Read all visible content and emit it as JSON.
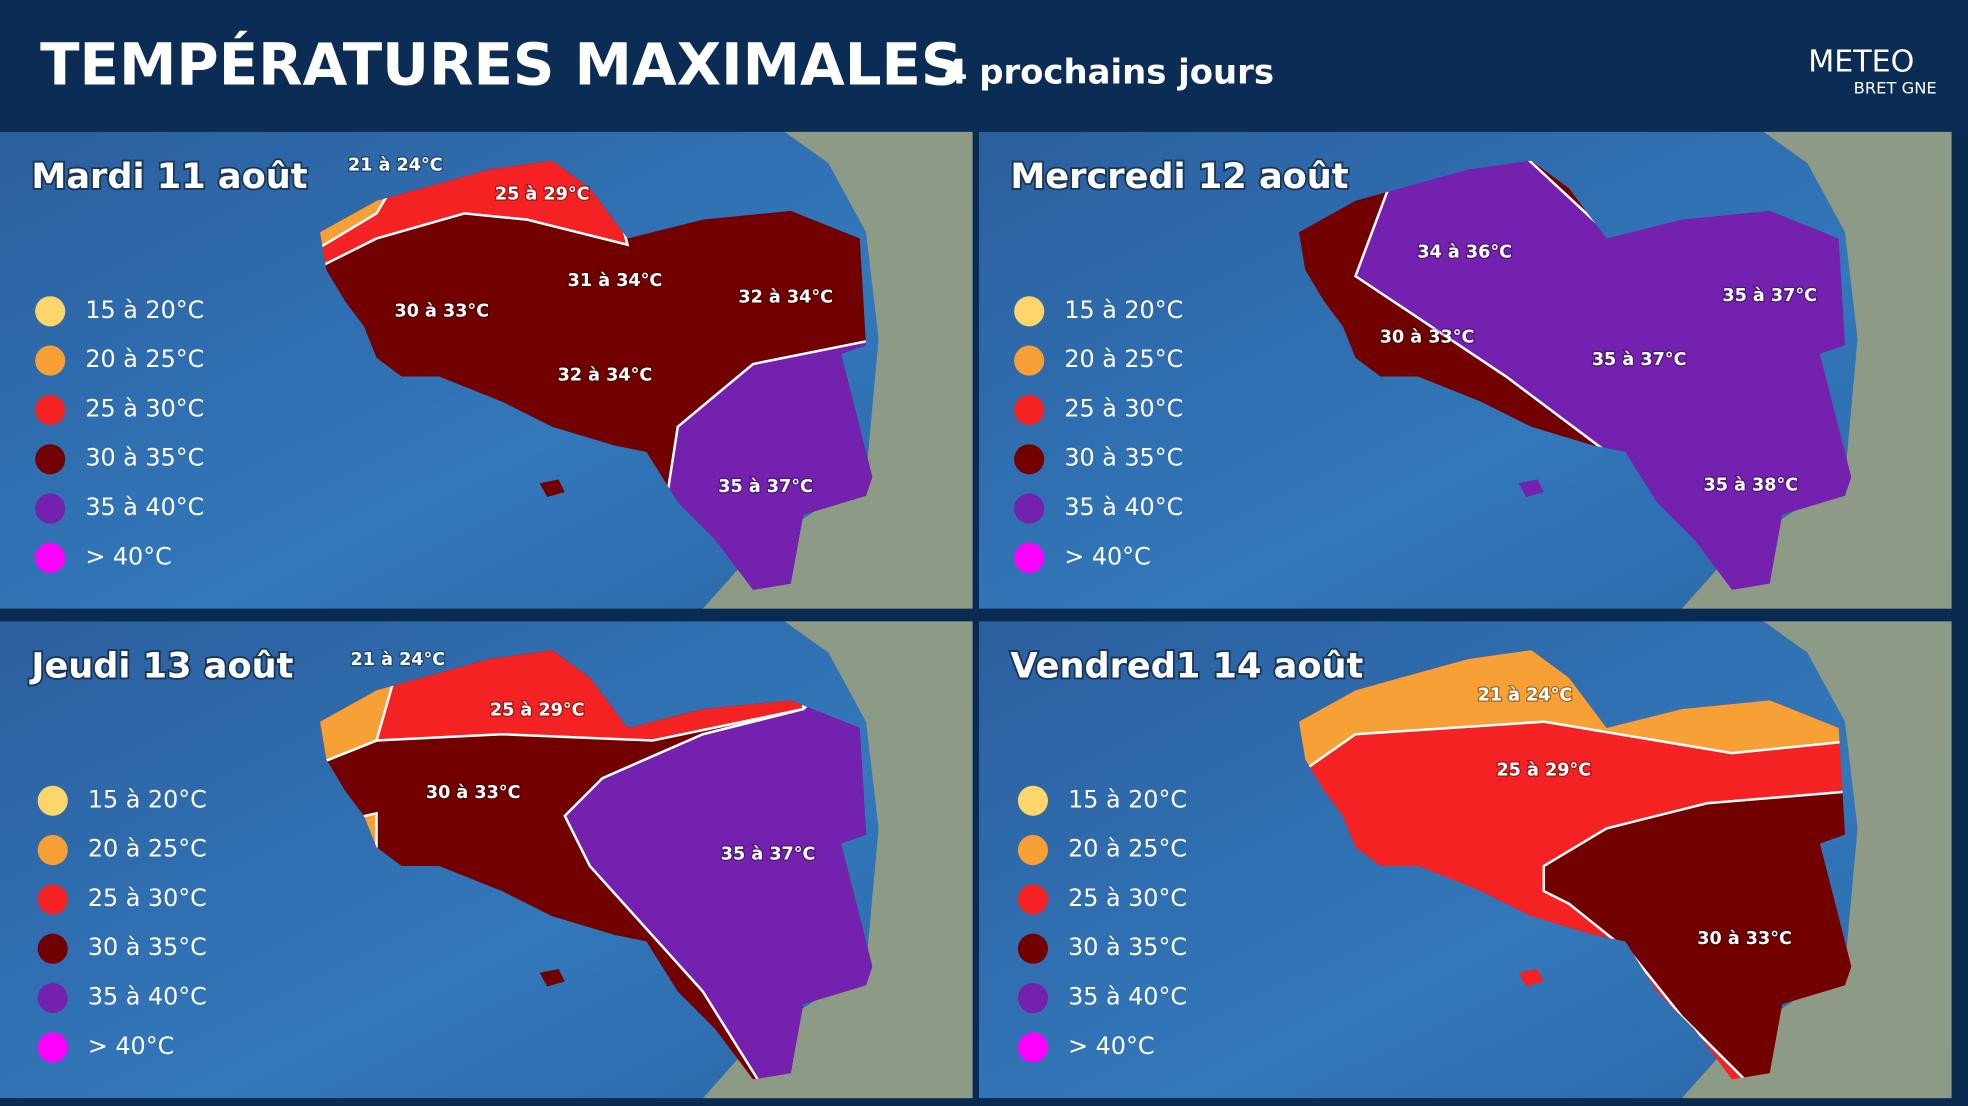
{
  "header": {
    "title": "TEMPÉRATURES MAXIMALES",
    "subtitle": "4 prochains jours",
    "logo": {
      "line1": "METEO",
      "line2": "BRET GNE"
    }
  },
  "legend": [
    {
      "label": "15 à 20°C",
      "color": "#fdd66b"
    },
    {
      "label": "20 à 25°C",
      "color": "#f7a035"
    },
    {
      "label": "25 à 30°C",
      "color": "#f42222"
    },
    {
      "label": "30 à 35°C",
      "color": "#720000"
    },
    {
      "label": "35 à 40°C",
      "color": "#7421b0"
    },
    {
      "label": "> 40°C",
      "color": "#ff00ff"
    }
  ],
  "panels": [
    {
      "title": "Mardi 11 août",
      "zones": [
        "21 à 24°C",
        "25 à 29°C",
        "31 à 34°C",
        "32 à 34°C",
        "30 à 33°C",
        "32 à 34°C",
        "35 à 37°C"
      ]
    },
    {
      "title": "Mercredi 12 août",
      "zones": [
        "34 à 36°C",
        "35 à 37°C",
        "30 à 33°C",
        "35 à 37°C",
        "35 à 38°C"
      ]
    },
    {
      "title": "Jeudi 13 août",
      "zones": [
        "21 à 24°C",
        "25 à 29°C",
        "30 à 33°C",
        "35 à 37°C"
      ]
    },
    {
      "title": "Vendred1 14 août",
      "zones": [
        "21 à 24°C",
        "25 à 29°C",
        "30 à 33°C"
      ]
    }
  ]
}
